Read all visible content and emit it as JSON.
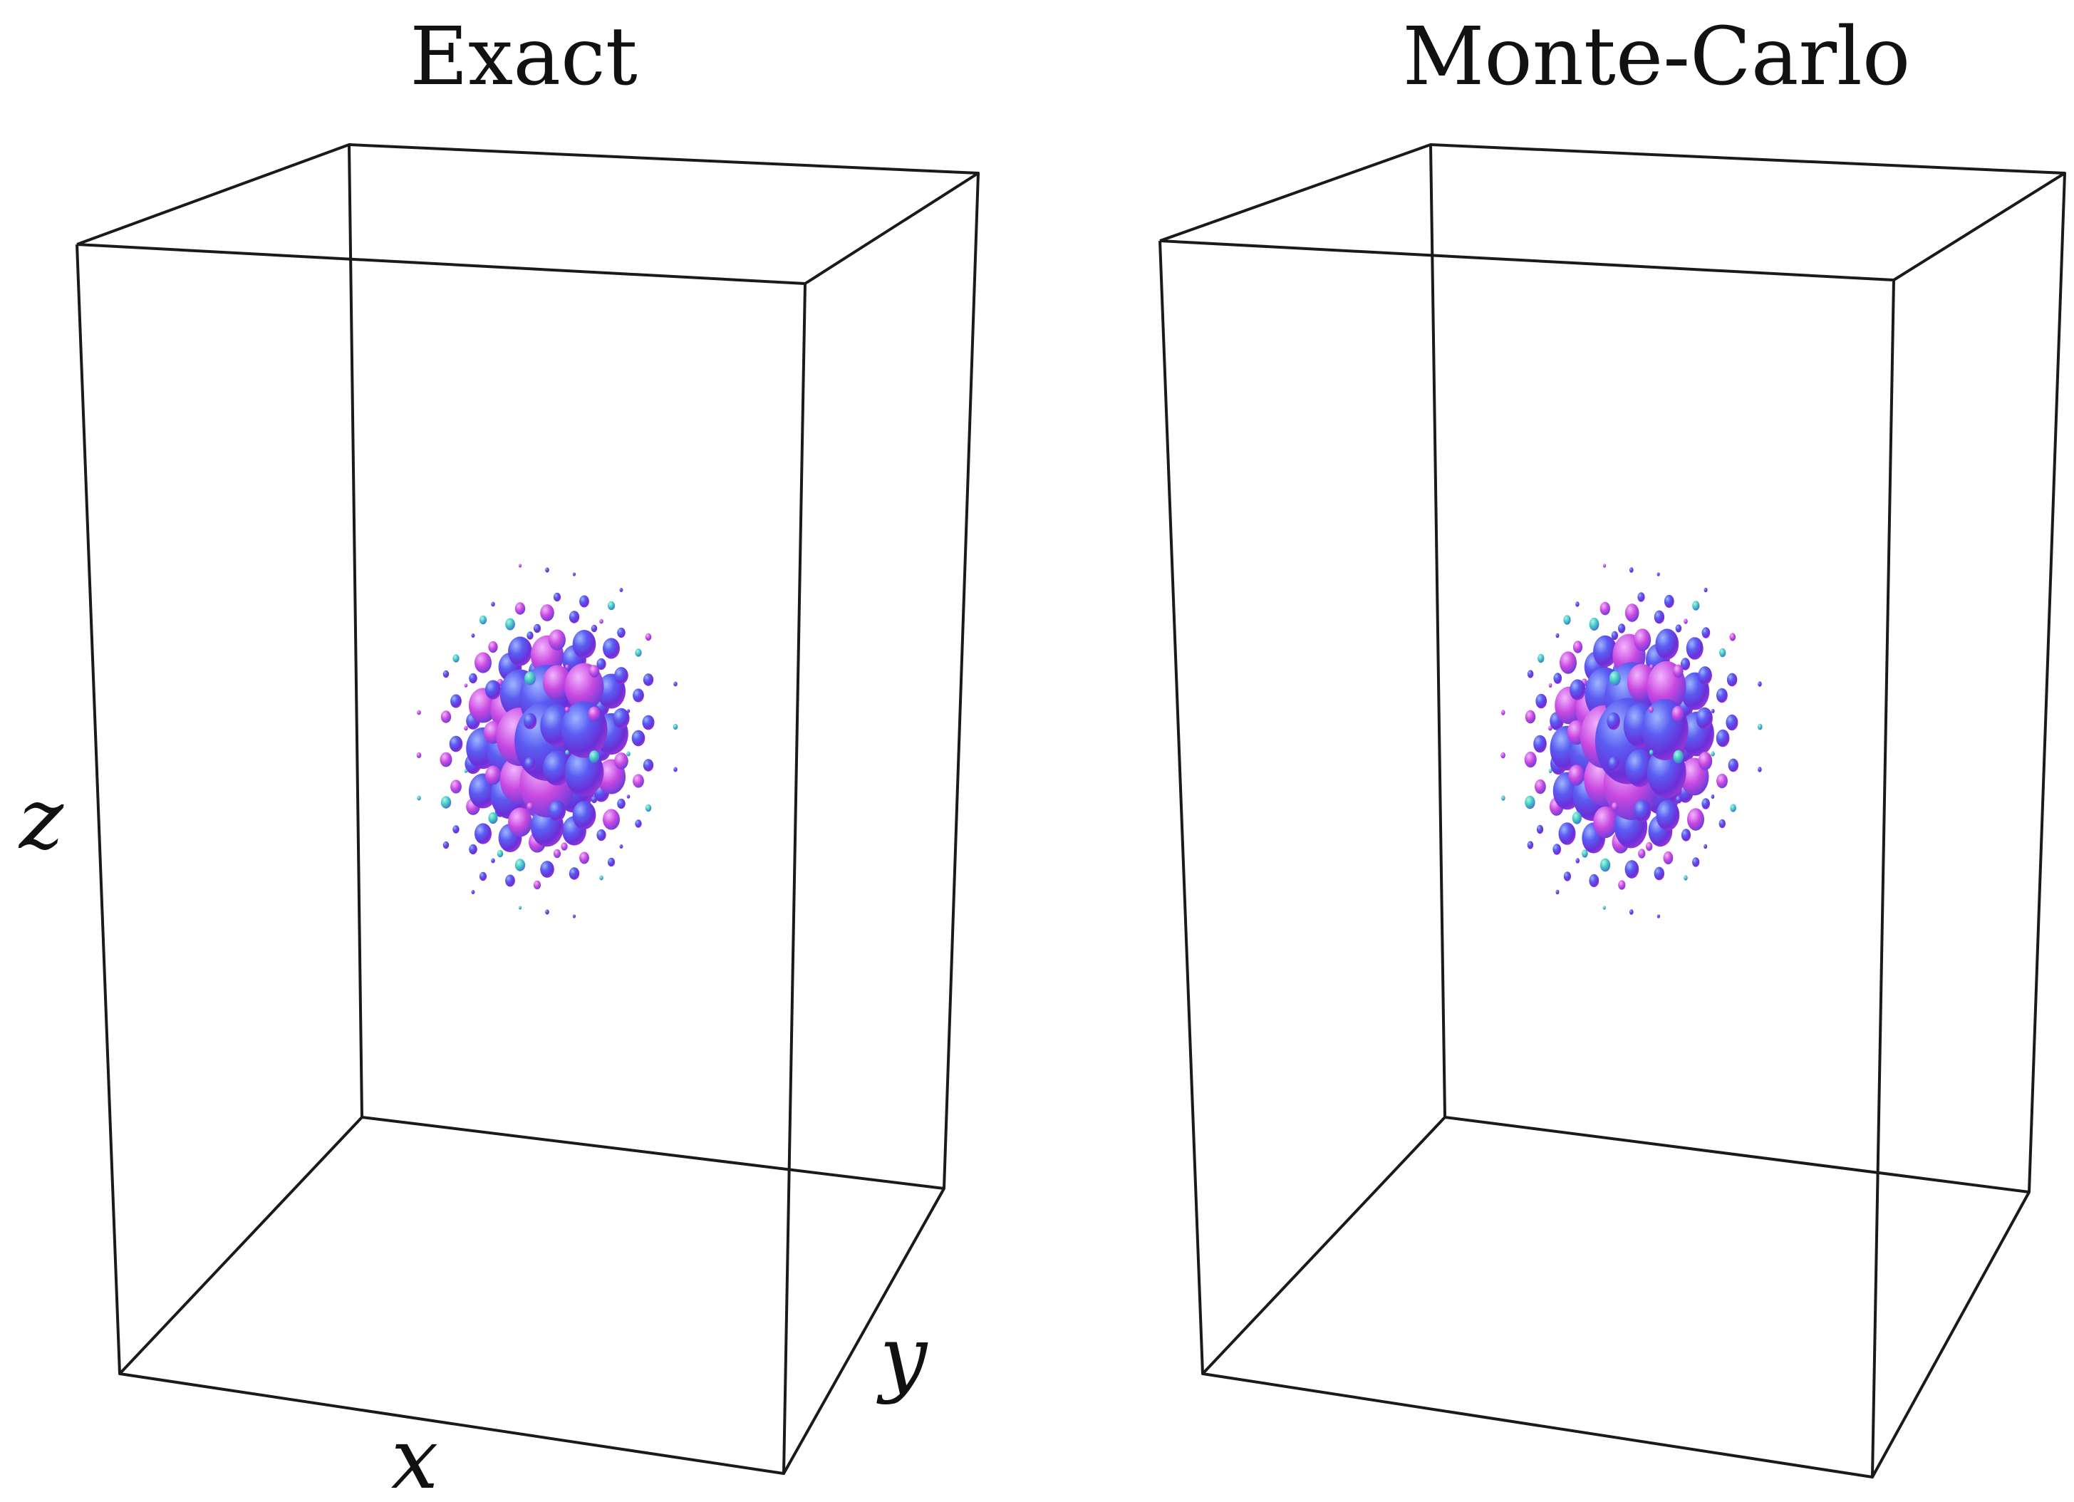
{
  "figure": {
    "panels": [
      {
        "title": "Exact"
      },
      {
        "title": "Monte-Carlo"
      }
    ],
    "axes": {
      "x": "x",
      "y": "y",
      "z": "z"
    },
    "colors": {
      "box": "#1a1a1a",
      "ellipsoid_main": "#4a4af0",
      "ellipsoid_alt1": "#cc44e0",
      "ellipsoid_alt2": "#3ed6c0"
    }
  }
}
